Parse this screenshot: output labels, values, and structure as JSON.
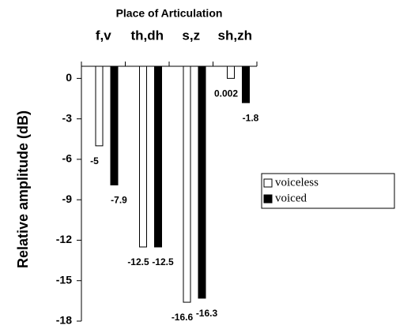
{
  "chart_data": {
    "type": "bar",
    "title": "Place of Articulation",
    "y_label": "Relative amplitude (dB)",
    "categories": [
      "f,v",
      "th,dh",
      "s,z",
      "sh,zh"
    ],
    "series": [
      {
        "name": "voiceless",
        "color": "#ffffff",
        "values": [
          -5,
          -12.5,
          -16.6,
          0.002
        ],
        "value_labels": [
          "-5",
          "-12.5",
          "-16.6",
          "0.002"
        ]
      },
      {
        "name": "voiced",
        "color": "#000000",
        "values": [
          -7.9,
          -12.5,
          -16.3,
          -1.8
        ],
        "value_labels": [
          "-7.9",
          "-12.5",
          "-16.3",
          "-1.8"
        ]
      }
    ],
    "ylim": [
      -18,
      0.9
    ],
    "yticks": [
      0,
      -3,
      -6,
      -9,
      -12,
      -15,
      -18
    ],
    "legend": "right"
  }
}
